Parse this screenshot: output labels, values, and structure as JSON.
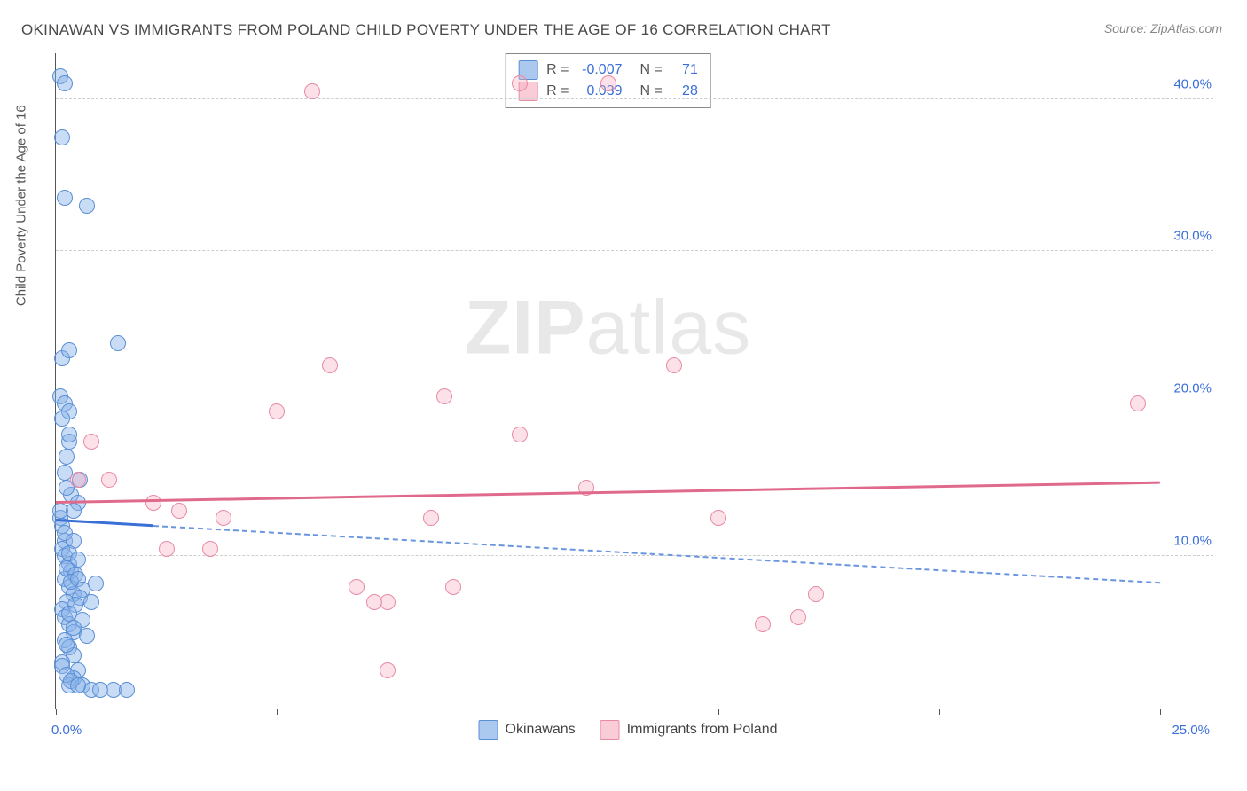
{
  "title": "OKINAWAN VS IMMIGRANTS FROM POLAND CHILD POVERTY UNDER THE AGE OF 16 CORRELATION CHART",
  "source": "Source: ZipAtlas.com",
  "y_axis_label": "Child Poverty Under the Age of 16",
  "watermark_bold": "ZIP",
  "watermark_rest": "atlas",
  "chart": {
    "type": "scatter",
    "xlim": [
      0,
      25
    ],
    "ylim": [
      0,
      43
    ],
    "x_ticks": [
      0,
      5,
      10,
      15,
      20,
      25
    ],
    "x_tick_labels": {
      "left": "0.0%",
      "right": "25.0%"
    },
    "y_gridlines": [
      10,
      20,
      30,
      40
    ],
    "y_tick_labels": [
      "10.0%",
      "20.0%",
      "30.0%",
      "40.0%"
    ],
    "grid_color": "#cccccc",
    "background_color": "#ffffff",
    "axis_color": "#555555",
    "tick_label_color": "#3a6fd8",
    "marker_radius": 9,
    "series": [
      {
        "name": "Okinawans",
        "fill_color": "#87b2e8",
        "stroke_color": "#5a8fd6",
        "fill_opacity": 0.45,
        "R": "-0.007",
        "N": "71",
        "trend": {
          "y_at_x0": 12.3,
          "y_at_x25": 8.2,
          "solid_until_x": 2.2,
          "color_solid": "#3a6fd8",
          "color_dash": "#6a95df"
        },
        "points": [
          [
            0.1,
            12.5
          ],
          [
            0.1,
            13.0
          ],
          [
            0.15,
            12.0
          ],
          [
            0.2,
            11.0
          ],
          [
            0.2,
            15.5
          ],
          [
            0.25,
            16.5
          ],
          [
            0.3,
            17.5
          ],
          [
            0.3,
            18.0
          ],
          [
            0.15,
            10.5
          ],
          [
            0.2,
            10.0
          ],
          [
            0.3,
            9.5
          ],
          [
            0.35,
            9.0
          ],
          [
            0.2,
            8.5
          ],
          [
            0.3,
            8.0
          ],
          [
            0.4,
            7.5
          ],
          [
            0.25,
            7.0
          ],
          [
            0.15,
            6.5
          ],
          [
            0.2,
            6.0
          ],
          [
            0.3,
            5.5
          ],
          [
            0.4,
            5.0
          ],
          [
            0.2,
            4.5
          ],
          [
            0.3,
            4.0
          ],
          [
            0.4,
            3.5
          ],
          [
            0.15,
            3.0
          ],
          [
            0.5,
            2.5
          ],
          [
            0.4,
            2.0
          ],
          [
            0.3,
            1.5
          ],
          [
            0.6,
            1.5
          ],
          [
            0.8,
            1.2
          ],
          [
            1.0,
            1.2
          ],
          [
            1.3,
            1.2
          ],
          [
            1.6,
            1.2
          ],
          [
            0.2,
            11.5
          ],
          [
            0.4,
            11.0
          ],
          [
            0.3,
            10.2
          ],
          [
            0.5,
            9.8
          ],
          [
            0.25,
            9.2
          ],
          [
            0.45,
            8.8
          ],
          [
            0.35,
            8.3
          ],
          [
            0.5,
            8.5
          ],
          [
            0.6,
            7.8
          ],
          [
            0.55,
            7.3
          ],
          [
            0.45,
            6.8
          ],
          [
            0.3,
            6.2
          ],
          [
            0.6,
            5.8
          ],
          [
            0.4,
            5.3
          ],
          [
            0.7,
            4.8
          ],
          [
            0.25,
            4.2
          ],
          [
            0.15,
            23.0
          ],
          [
            0.3,
            23.5
          ],
          [
            1.4,
            24.0
          ],
          [
            0.1,
            20.5
          ],
          [
            0.2,
            20.0
          ],
          [
            0.3,
            19.5
          ],
          [
            0.15,
            19.0
          ],
          [
            0.35,
            14.0
          ],
          [
            0.5,
            13.5
          ],
          [
            0.4,
            13.0
          ],
          [
            0.55,
            15.0
          ],
          [
            0.25,
            14.5
          ],
          [
            0.1,
            41.5
          ],
          [
            0.2,
            41.0
          ],
          [
            0.15,
            37.5
          ],
          [
            0.2,
            33.5
          ],
          [
            0.7,
            33.0
          ],
          [
            0.15,
            2.8
          ],
          [
            0.25,
            2.2
          ],
          [
            0.35,
            1.8
          ],
          [
            0.5,
            1.5
          ],
          [
            0.8,
            7.0
          ],
          [
            0.9,
            8.2
          ]
        ]
      },
      {
        "name": "Immigrants from Poland",
        "fill_color": "#f5aabe",
        "stroke_color": "#e88ba5",
        "fill_opacity": 0.35,
        "R": "0.039",
        "N": "28",
        "trend": {
          "y_at_x0": 13.5,
          "y_at_x25": 14.8,
          "color": "#e06a8c"
        },
        "points": [
          [
            0.8,
            17.5
          ],
          [
            1.2,
            15.0
          ],
          [
            2.2,
            13.5
          ],
          [
            2.8,
            13.0
          ],
          [
            2.5,
            10.5
          ],
          [
            3.5,
            10.5
          ],
          [
            3.8,
            12.5
          ],
          [
            5.0,
            19.5
          ],
          [
            6.2,
            22.5
          ],
          [
            6.8,
            8.0
          ],
          [
            7.2,
            7.0
          ],
          [
            7.5,
            7.0
          ],
          [
            7.5,
            2.5
          ],
          [
            8.5,
            12.5
          ],
          [
            8.8,
            20.5
          ],
          [
            9.0,
            8.0
          ],
          [
            10.5,
            18.0
          ],
          [
            10.5,
            41.0
          ],
          [
            12.0,
            14.5
          ],
          [
            12.5,
            41.0
          ],
          [
            14.0,
            22.5
          ],
          [
            15.0,
            12.5
          ],
          [
            16.0,
            5.5
          ],
          [
            16.8,
            6.0
          ],
          [
            17.2,
            7.5
          ],
          [
            24.5,
            20.0
          ],
          [
            5.8,
            40.5
          ],
          [
            0.5,
            15.0
          ]
        ]
      }
    ]
  },
  "stats_legend_labels": {
    "R": "R =",
    "N": "N ="
  },
  "bottom_legend": [
    {
      "swatch": "blue",
      "label": "Okinawans"
    },
    {
      "swatch": "pink",
      "label": "Immigrants from Poland"
    }
  ]
}
